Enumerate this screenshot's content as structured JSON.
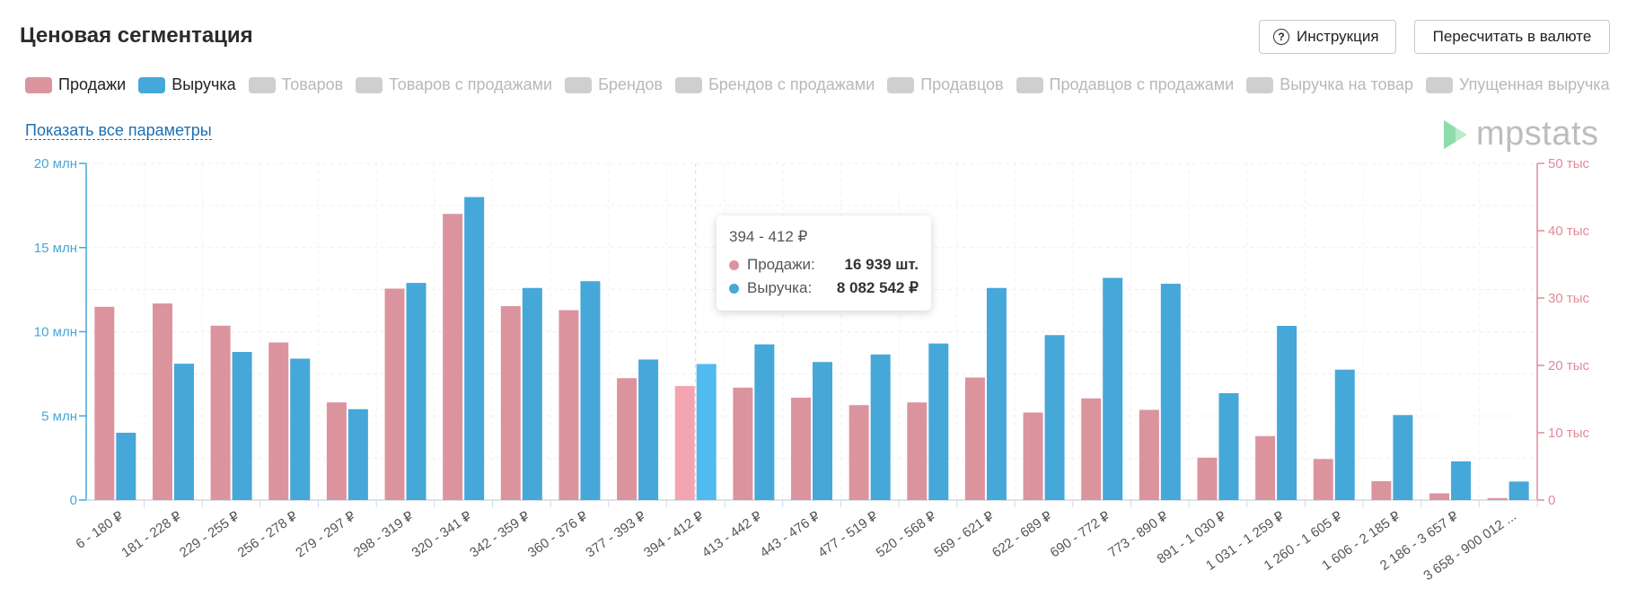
{
  "header": {
    "title": "Ценовая сегментация",
    "help_button": "Инструкция",
    "recalc_button": "Пересчитать в валюте"
  },
  "legend": [
    {
      "label": "Продажи",
      "color": "#db949e",
      "active": true
    },
    {
      "label": "Выручка",
      "color": "#46a7d9",
      "active": true
    },
    {
      "label": "Товаров",
      "color": "#cfcfcf",
      "active": false
    },
    {
      "label": "Товаров с продажами",
      "color": "#cfcfcf",
      "active": false
    },
    {
      "label": "Брендов",
      "color": "#cfcfcf",
      "active": false
    },
    {
      "label": "Брендов с продажами",
      "color": "#cfcfcf",
      "active": false
    },
    {
      "label": "Продавцов",
      "color": "#cfcfcf",
      "active": false
    },
    {
      "label": "Продавцов с продажами",
      "color": "#cfcfcf",
      "active": false
    },
    {
      "label": "Выручка на товар",
      "color": "#cfcfcf",
      "active": false
    },
    {
      "label": "Упущенная выручка",
      "color": "#cfcfcf",
      "active": false
    }
  ],
  "show_all_link": "Показать все параметры",
  "logo": {
    "text": "mpstats",
    "icon": "mpstats-logo-icon"
  },
  "tooltip": {
    "title": "394 - 412 ₽",
    "rows": [
      {
        "name": "Продажи:",
        "value": "16 939 шт.",
        "color": "#db949e"
      },
      {
        "name": "Выручка:",
        "value": "8 082 542 ₽",
        "color": "#46a7d9"
      }
    ]
  },
  "chart_data": {
    "type": "bar",
    "categories": [
      "6 - 180 ₽",
      "181 - 228 ₽",
      "229 - 255 ₽",
      "256 - 278 ₽",
      "279 - 297 ₽",
      "298 - 319 ₽",
      "320 - 341 ₽",
      "342 - 359 ₽",
      "360 - 376 ₽",
      "377 - 393 ₽",
      "394 - 412 ₽",
      "413 - 442 ₽",
      "443 - 476 ₽",
      "477 - 519 ₽",
      "520 - 568 ₽",
      "569 - 621 ₽",
      "622 - 689 ₽",
      "690 - 772 ₽",
      "773 - 890 ₽",
      "891 - 1 030 ₽",
      "1 031 - 1 259 ₽",
      "1 260 - 1 605 ₽",
      "1 606 - 2 185 ₽",
      "2 186 - 3 657 ₽",
      "3 658 - 900 012 ..."
    ],
    "series": [
      {
        "name": "Продажи",
        "axis": "right",
        "color": "#db949e",
        "values": [
          28700,
          29200,
          25900,
          23400,
          14500,
          31400,
          42500,
          28800,
          28200,
          18100,
          16939,
          16700,
          15200,
          14100,
          14500,
          18200,
          13000,
          15100,
          13400,
          6300,
          9500,
          6100,
          2800,
          1000,
          300
        ]
      },
      {
        "name": "Выручка",
        "axis": "left",
        "color": "#46a7d9",
        "values": [
          4000000,
          8100000,
          8800000,
          8400000,
          5400000,
          12900000,
          18000000,
          12600000,
          13000000,
          8350000,
          8082542,
          9250000,
          8200000,
          8650000,
          9300000,
          12600000,
          9800000,
          13200000,
          12850000,
          6350000,
          10350000,
          7750000,
          5050000,
          2300000,
          1100000
        ]
      }
    ],
    "left_axis": {
      "ylim": [
        0,
        20000000
      ],
      "ticks": [
        "0",
        "5 млн",
        "10 млн",
        "15 млн",
        "20 млн"
      ],
      "color": "#46a7d9"
    },
    "right_axis": {
      "ylim": [
        0,
        50000
      ],
      "ticks": [
        "0",
        "10 тыс",
        "20 тыс",
        "30 тыс",
        "40 тыс",
        "50 тыс"
      ],
      "color": "#e08a9a"
    },
    "highlighted_index": 10,
    "highlight_colors": {
      "sales": "#f2a4b1",
      "revenue": "#4fbbef"
    },
    "grid": true,
    "legend_position": "top-left"
  }
}
